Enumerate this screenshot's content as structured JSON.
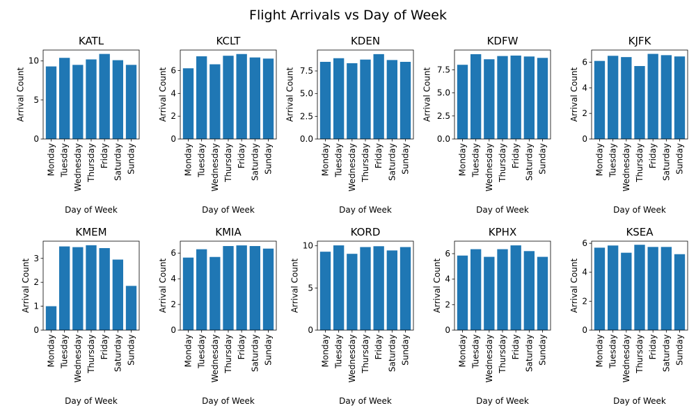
{
  "figure": {
    "title": "Flight Arrivals vs Day of Week",
    "bar_color": "#1f77b4"
  },
  "chart_data": [
    {
      "type": "bar",
      "title": "KATL",
      "xlabel": "Day of Week",
      "ylabel": "Arrival Count",
      "categories": [
        "Monday",
        "Tuesday",
        "Wednesday",
        "Thursday",
        "Friday",
        "Saturday",
        "Sunday"
      ],
      "values": [
        9.3,
        10.4,
        9.5,
        10.2,
        10.9,
        10.1,
        9.5
      ],
      "ylim": [
        0,
        11.4
      ],
      "yticks": [
        0,
        5,
        10
      ]
    },
    {
      "type": "bar",
      "title": "KCLT",
      "xlabel": "Day of Week",
      "ylabel": "Arrival Count",
      "categories": [
        "Monday",
        "Tuesday",
        "Wednesday",
        "Thursday",
        "Friday",
        "Saturday",
        "Sunday"
      ],
      "values": [
        6.2,
        7.25,
        6.55,
        7.3,
        7.45,
        7.15,
        7.05
      ],
      "ylim": [
        0,
        7.8
      ],
      "yticks": [
        0,
        2,
        4,
        6
      ]
    },
    {
      "type": "bar",
      "title": "KDEN",
      "xlabel": "Day of Week",
      "ylabel": "Arrival Count",
      "categories": [
        "Monday",
        "Tuesday",
        "Wednesday",
        "Thursday",
        "Friday",
        "Saturday",
        "Sunday"
      ],
      "values": [
        8.5,
        8.9,
        8.35,
        8.75,
        9.35,
        8.7,
        8.5
      ],
      "ylim": [
        0,
        9.8
      ],
      "yticks": [
        0,
        2.5,
        5,
        7.5
      ],
      "ytick_decimals": 1
    },
    {
      "type": "bar",
      "title": "KDFW",
      "xlabel": "Day of Week",
      "ylabel": "Arrival Count",
      "categories": [
        "Monday",
        "Tuesday",
        "Wednesday",
        "Thursday",
        "Friday",
        "Saturday",
        "Sunday"
      ],
      "values": [
        8.05,
        9.2,
        8.65,
        9.0,
        9.05,
        8.95,
        8.8
      ],
      "ylim": [
        0,
        9.65
      ],
      "yticks": [
        0,
        2.5,
        5,
        7.5
      ],
      "ytick_decimals": 1
    },
    {
      "type": "bar",
      "title": "KJFK",
      "xlabel": "Day of Week",
      "ylabel": "Arrival Count",
      "categories": [
        "Monday",
        "Tuesday",
        "Wednesday",
        "Thursday",
        "Friday",
        "Saturday",
        "Sunday"
      ],
      "values": [
        6.1,
        6.5,
        6.4,
        5.7,
        6.65,
        6.55,
        6.45
      ],
      "ylim": [
        0,
        6.95
      ],
      "yticks": [
        0,
        2,
        4,
        6
      ]
    },
    {
      "type": "bar",
      "title": "KMEM",
      "xlabel": "Day of Week",
      "ylabel": "Arrival Count",
      "categories": [
        "Monday",
        "Tuesday",
        "Wednesday",
        "Thursday",
        "Friday",
        "Saturday",
        "Sunday"
      ],
      "values": [
        1.0,
        3.5,
        3.47,
        3.55,
        3.43,
        2.95,
        1.85
      ],
      "ylim": [
        0,
        3.72
      ],
      "yticks": [
        0,
        1,
        2,
        3
      ]
    },
    {
      "type": "bar",
      "title": "KMIA",
      "xlabel": "Day of Week",
      "ylabel": "Arrival Count",
      "categories": [
        "Monday",
        "Tuesday",
        "Wednesday",
        "Thursday",
        "Friday",
        "Saturday",
        "Sunday"
      ],
      "values": [
        5.65,
        6.3,
        5.7,
        6.55,
        6.6,
        6.55,
        6.35
      ],
      "ylim": [
        0,
        6.93
      ],
      "yticks": [
        0,
        2,
        4,
        6
      ]
    },
    {
      "type": "bar",
      "title": "KORD",
      "xlabel": "Day of Week",
      "ylabel": "Arrival Count",
      "categories": [
        "Monday",
        "Tuesday",
        "Wednesday",
        "Thursday",
        "Friday",
        "Saturday",
        "Sunday"
      ],
      "values": [
        9.3,
        10.05,
        9.05,
        9.85,
        9.95,
        9.45,
        9.85
      ],
      "ylim": [
        0,
        10.55
      ],
      "yticks": [
        0,
        5,
        10
      ]
    },
    {
      "type": "bar",
      "title": "KPHX",
      "xlabel": "Day of Week",
      "ylabel": "Arrival Count",
      "categories": [
        "Monday",
        "Tuesday",
        "Wednesday",
        "Thursday",
        "Friday",
        "Saturday",
        "Sunday"
      ],
      "values": [
        5.85,
        6.35,
        5.75,
        6.35,
        6.65,
        6.2,
        5.75
      ],
      "ylim": [
        0,
        6.98
      ],
      "yticks": [
        0,
        2,
        4,
        6
      ]
    },
    {
      "type": "bar",
      "title": "KSEA",
      "xlabel": "Day of Week",
      "ylabel": "Arrival Count",
      "categories": [
        "Monday",
        "Tuesday",
        "Wednesday",
        "Thursday",
        "Friday",
        "Saturday",
        "Sunday"
      ],
      "values": [
        5.7,
        5.85,
        5.35,
        5.9,
        5.75,
        5.75,
        5.25
      ],
      "ylim": [
        0,
        6.15
      ],
      "yticks": [
        0,
        2,
        4,
        6
      ]
    }
  ]
}
